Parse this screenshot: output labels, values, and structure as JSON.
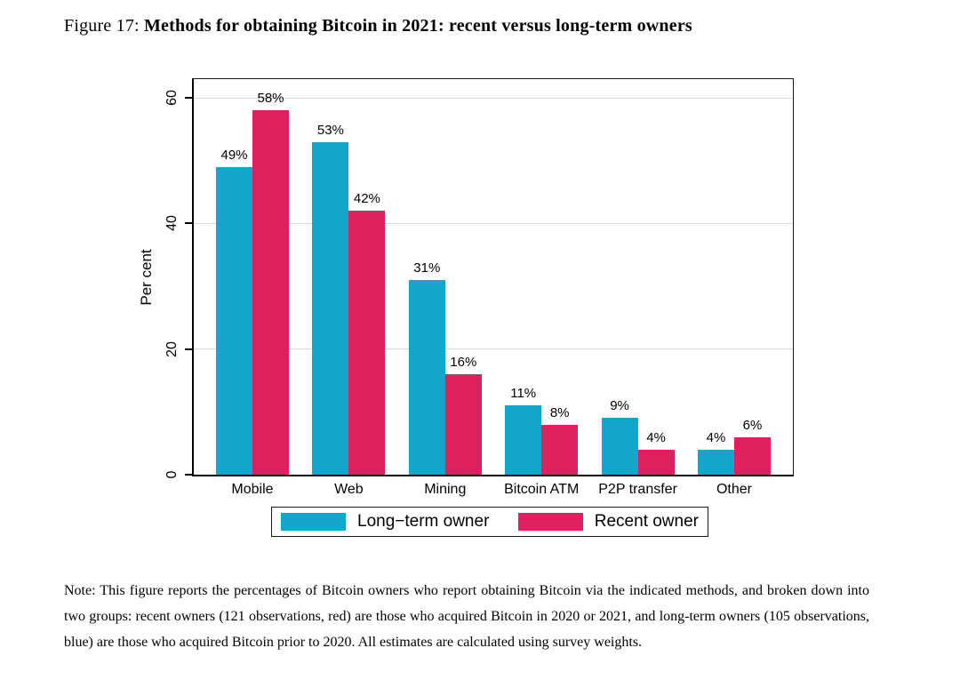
{
  "title": {
    "prefix": "Figure 17:",
    "text": "Methods for obtaining Bitcoin in 2021: recent versus long-term owners"
  },
  "colors": {
    "long_term": "#14a5cd",
    "recent": "#de215e",
    "gridline": "#d9d9d9",
    "axis": "#000000"
  },
  "chart_data": {
    "type": "bar",
    "categories": [
      "Mobile",
      "Web",
      "Mining",
      "Bitcoin ATM",
      "P2P transfer",
      "Other"
    ],
    "series": [
      {
        "name": "Long−term owner",
        "color_key": "long_term",
        "values": [
          49,
          53,
          31,
          11,
          9,
          4
        ]
      },
      {
        "name": "Recent owner",
        "color_key": "recent",
        "values": [
          58,
          42,
          16,
          8,
          4,
          6
        ]
      }
    ],
    "value_label_suffix": "%",
    "title": "",
    "xlabel": "",
    "ylabel": "Per cent",
    "yticks": [
      0,
      20,
      40,
      60
    ],
    "ylim": [
      0,
      63
    ],
    "grid": true,
    "legend_position": "bottom"
  },
  "note": {
    "label": "Note:",
    "text": "This figure reports the percentages of Bitcoin owners who report obtaining Bitcoin via the indicated methods, and broken down into two groups: recent owners (121 observations, red) are those who acquired Bitcoin in 2020 or 2021, and long-term owners (105 observations, blue) are those who acquired Bitcoin prior to 2020. All estimates are calculated using survey weights."
  }
}
